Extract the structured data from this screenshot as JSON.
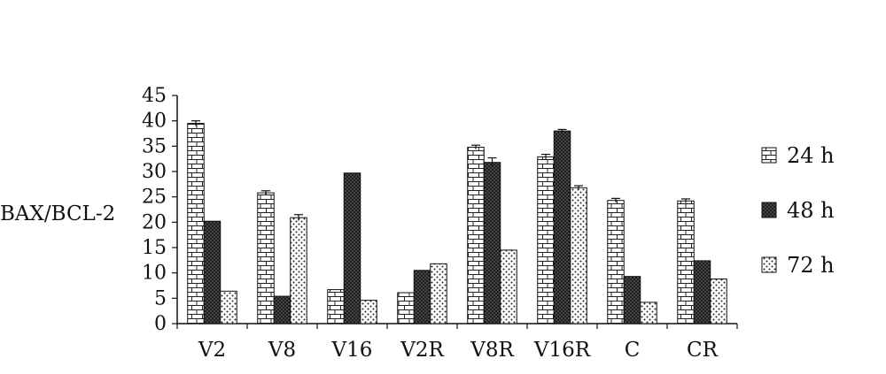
{
  "chart_data": {
    "type": "bar",
    "title": "",
    "xlabel": "",
    "ylabel": "BAX/BCL-2",
    "ylim": [
      0,
      45
    ],
    "yticks": [
      0,
      5,
      10,
      15,
      20,
      25,
      30,
      35,
      40,
      45
    ],
    "grid": false,
    "legend_position": "right",
    "categories": [
      "V2",
      "V8",
      "V16",
      "V2R",
      "V8R",
      "V16R",
      "C",
      "CR"
    ],
    "series": [
      {
        "name": "24 h",
        "pattern": "brick",
        "values": [
          39.5,
          25.8,
          6.7,
          6.1,
          34.8,
          32.9,
          24.3,
          24.2
        ],
        "errors": [
          0.5,
          0.4,
          0,
          0,
          0.4,
          0.5,
          0.4,
          0.4
        ]
      },
      {
        "name": "48 h",
        "pattern": "crosshatch",
        "values": [
          20.2,
          5.4,
          29.7,
          10.5,
          31.8,
          38,
          9.3,
          12.4
        ],
        "errors": [
          0,
          0,
          0,
          0,
          0.9,
          0.3,
          0,
          0
        ]
      },
      {
        "name": "72 h",
        "pattern": "dots",
        "values": [
          6.4,
          20.9,
          4.6,
          11.8,
          14.5,
          26.8,
          4.2,
          8.8
        ],
        "errors": [
          0,
          0.6,
          0,
          0,
          0,
          0.4,
          0,
          0
        ]
      }
    ]
  }
}
